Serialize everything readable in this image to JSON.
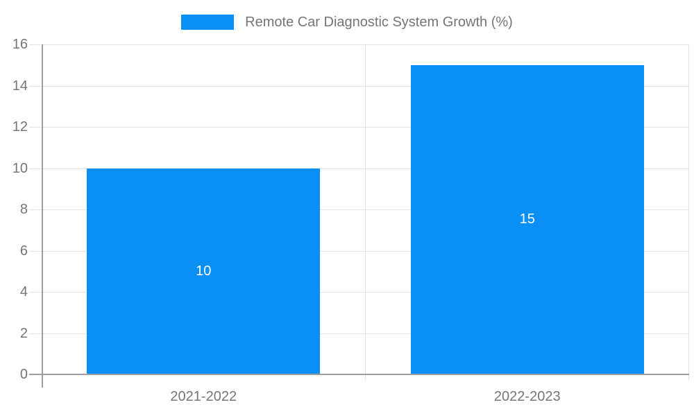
{
  "legend": {
    "label": "Remote Car Diagnostic System Growth (%)",
    "swatch_color": "#0a90f5"
  },
  "chart_data": {
    "type": "bar",
    "title": "Remote Car Diagnostic System Growth (%)",
    "categories": [
      "2021-2022",
      "2022-2023"
    ],
    "values": [
      10,
      15
    ],
    "bar_labels": [
      "10",
      "15"
    ],
    "xlabel": "",
    "ylabel": "",
    "ylim": [
      0,
      16
    ],
    "yticks": [
      0,
      2,
      4,
      6,
      8,
      10,
      12,
      14,
      16
    ],
    "grid": true,
    "legend_position": "top-center",
    "bar_width_fraction": 0.72,
    "colors": {
      "bar": "#0a90f5",
      "bar_label_text": "#ffffff",
      "axis_text": "#757575",
      "gridline_light": "#e2e2e2",
      "axis_line": "#9e9e9e",
      "background": "#ffffff"
    }
  }
}
